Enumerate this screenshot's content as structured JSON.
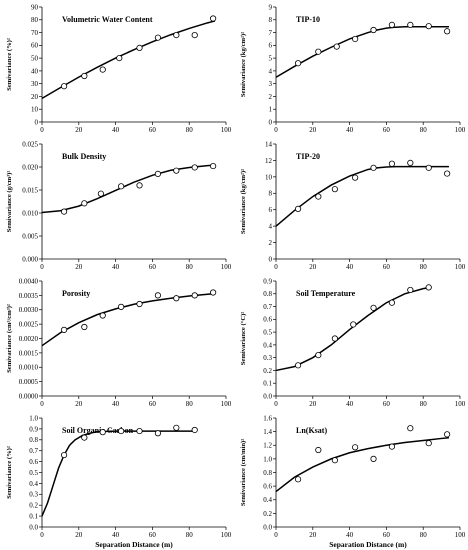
{
  "chart_data": [
    {
      "type": "scatter",
      "title": "Volumetric Water Content",
      "ylabel": "Semivariance (%)²",
      "xlabel": "",
      "xlim": [
        0,
        100
      ],
      "xticks": [
        0,
        20,
        40,
        60,
        80,
        100
      ],
      "ylim": [
        0,
        90
      ],
      "yticks": [
        0,
        10,
        20,
        30,
        40,
        50,
        60,
        70,
        80,
        90
      ],
      "ydecimals": 0,
      "grid": false,
      "legend": "none",
      "series": [
        {
          "kind": "points",
          "x": [
            12,
            23,
            33,
            42,
            53,
            63,
            73,
            83,
            93
          ],
          "y": [
            28,
            36,
            41,
            50,
            58,
            66,
            68,
            68,
            81
          ]
        },
        {
          "kind": "fit",
          "x": [
            0,
            10,
            20,
            30,
            40,
            50,
            60,
            70,
            80,
            90,
            94
          ],
          "y": [
            18.5,
            26.9,
            35.1,
            42.8,
            50,
            56.6,
            62.8,
            68.3,
            73.2,
            77.6,
            79.1
          ]
        }
      ]
    },
    {
      "type": "scatter",
      "title": "TIP-10",
      "ylabel": "Semivariance (kg/cm²)²",
      "xlabel": "",
      "xlim": [
        0,
        100
      ],
      "xticks": [
        0,
        20,
        40,
        60,
        80,
        100
      ],
      "ylim": [
        0,
        9
      ],
      "yticks": [
        0,
        1,
        2,
        3,
        4,
        5,
        6,
        7,
        8,
        9
      ],
      "ydecimals": 0,
      "grid": false,
      "legend": "none",
      "series": [
        {
          "kind": "points",
          "x": [
            12,
            23,
            33,
            43,
            53,
            63,
            73,
            83,
            93
          ],
          "y": [
            4.6,
            5.5,
            5.9,
            6.5,
            7.2,
            7.6,
            7.6,
            7.5,
            7.1
          ]
        },
        {
          "kind": "fit",
          "x": [
            0,
            10,
            20,
            30,
            40,
            50,
            55,
            60,
            65,
            70,
            80,
            94
          ],
          "y": [
            3.5,
            4.35,
            5.15,
            5.85,
            6.5,
            7.0,
            7.2,
            7.35,
            7.42,
            7.45,
            7.45,
            7.45
          ]
        }
      ]
    },
    {
      "type": "scatter",
      "title": "Bulk Density",
      "ylabel": "Semivariance (g/cm³)²",
      "xlabel": "",
      "xlim": [
        0,
        100
      ],
      "xticks": [
        0,
        20,
        40,
        60,
        80,
        100
      ],
      "ylim": [
        0,
        0.025
      ],
      "yticks": [
        0,
        0.005,
        0.01,
        0.015,
        0.02,
        0.025
      ],
      "ydecimals": 3,
      "grid": false,
      "legend": "none",
      "series": [
        {
          "kind": "points",
          "x": [
            12,
            23,
            32,
            43,
            53,
            63,
            73,
            83,
            93
          ],
          "y": [
            0.0103,
            0.0121,
            0.0142,
            0.0158,
            0.016,
            0.0185,
            0.0192,
            0.0199,
            0.0202
          ]
        },
        {
          "kind": "fit",
          "x": [
            0,
            10,
            20,
            30,
            40,
            50,
            60,
            70,
            80,
            90,
            94
          ],
          "y": [
            0.0101,
            0.0105,
            0.0115,
            0.0131,
            0.0149,
            0.0167,
            0.0182,
            0.0193,
            0.0199,
            0.0203,
            0.0204
          ]
        }
      ]
    },
    {
      "type": "scatter",
      "title": "TIP-20",
      "ylabel": "Semivariance (kg/cm²)²",
      "xlabel": "",
      "xlim": [
        0,
        100
      ],
      "xticks": [
        0,
        20,
        40,
        60,
        80,
        100
      ],
      "ylim": [
        0,
        14
      ],
      "yticks": [
        0,
        2,
        4,
        6,
        8,
        10,
        12,
        14
      ],
      "ydecimals": 0,
      "grid": false,
      "legend": "none",
      "series": [
        {
          "kind": "points",
          "x": [
            12,
            23,
            32,
            43,
            53,
            63,
            73,
            83,
            93
          ],
          "y": [
            6.1,
            7.6,
            8.5,
            9.9,
            11.1,
            11.6,
            11.7,
            11.1,
            10.4
          ]
        },
        {
          "kind": "fit",
          "x": [
            0,
            10,
            20,
            30,
            40,
            50,
            55,
            60,
            65,
            70,
            80,
            94
          ],
          "y": [
            4.0,
            5.9,
            7.6,
            9.0,
            10.1,
            10.9,
            11.1,
            11.2,
            11.25,
            11.25,
            11.25,
            11.25
          ]
        }
      ]
    },
    {
      "type": "scatter",
      "title": "Porosity",
      "ylabel": "Semivariance (cm³/cm³)²",
      "xlabel": "",
      "xlim": [
        0,
        100
      ],
      "xticks": [
        0,
        20,
        40,
        60,
        80,
        100
      ],
      "ylim": [
        0,
        0.004
      ],
      "yticks": [
        0,
        0.0005,
        0.001,
        0.0015,
        0.002,
        0.0025,
        0.003,
        0.0035,
        0.004
      ],
      "ydecimals": 4,
      "grid": false,
      "legend": "none",
      "series": [
        {
          "kind": "points",
          "x": [
            12,
            23,
            33,
            43,
            53,
            63,
            73,
            83,
            93
          ],
          "y": [
            0.0023,
            0.0024,
            0.0028,
            0.0031,
            0.0032,
            0.0035,
            0.0034,
            0.0035,
            0.0036
          ]
        },
        {
          "kind": "fit",
          "x": [
            0,
            10,
            20,
            30,
            40,
            50,
            60,
            70,
            80,
            90,
            94
          ],
          "y": [
            0.00175,
            0.0022,
            0.00255,
            0.00283,
            0.00303,
            0.00319,
            0.00331,
            0.0034,
            0.00348,
            0.00354,
            0.00356
          ]
        }
      ]
    },
    {
      "type": "scatter",
      "title": "Soil Temperature",
      "ylabel": "Semivariance (°C)²",
      "xlabel": "",
      "xlim": [
        0,
        100
      ],
      "xticks": [
        0,
        20,
        40,
        60,
        80,
        100
      ],
      "ylim": [
        0,
        0.9
      ],
      "yticks": [
        0,
        0.1,
        0.2,
        0.3,
        0.4,
        0.5,
        0.6,
        0.7,
        0.8,
        0.9
      ],
      "ydecimals": 1,
      "grid": false,
      "legend": "none",
      "series": [
        {
          "kind": "points",
          "x": [
            12,
            23,
            32,
            42,
            53,
            63,
            73,
            83
          ],
          "y": [
            0.24,
            0.32,
            0.45,
            0.56,
            0.69,
            0.73,
            0.83,
            0.85
          ]
        },
        {
          "kind": "fit",
          "x": [
            0,
            10,
            20,
            30,
            40,
            50,
            60,
            70,
            80,
            84
          ],
          "y": [
            0.2,
            0.23,
            0.3,
            0.4,
            0.52,
            0.63,
            0.73,
            0.8,
            0.84,
            0.85
          ]
        }
      ]
    },
    {
      "type": "scatter",
      "title": "Soil Organic Carbon",
      "ylabel": "Semivariance (%)²",
      "xlabel": "Separation Distance (m)",
      "xlim": [
        0,
        100
      ],
      "xticks": [
        0,
        20,
        40,
        60,
        80,
        100
      ],
      "ylim": [
        0,
        1.0
      ],
      "yticks": [
        0,
        0.1,
        0.2,
        0.3,
        0.4,
        0.5,
        0.6,
        0.7,
        0.8,
        0.9,
        1.0
      ],
      "ydecimals": 1,
      "grid": false,
      "legend": "none",
      "series": [
        {
          "kind": "points",
          "x": [
            12,
            23,
            33,
            43,
            53,
            63,
            73,
            83
          ],
          "y": [
            0.66,
            0.82,
            0.87,
            0.88,
            0.88,
            0.86,
            0.91,
            0.89
          ]
        },
        {
          "kind": "fit",
          "x": [
            0,
            3,
            6,
            9,
            12,
            15,
            18,
            22,
            26,
            30,
            40,
            50,
            84
          ],
          "y": [
            0.1,
            0.22,
            0.38,
            0.54,
            0.66,
            0.75,
            0.8,
            0.84,
            0.86,
            0.875,
            0.88,
            0.88,
            0.88
          ]
        }
      ]
    },
    {
      "type": "scatter",
      "title": "Ln(Ksat)",
      "ylabel": "Semivariance (cm/min)²",
      "xlabel": "Separation Distance (m)",
      "xlim": [
        0,
        100
      ],
      "xticks": [
        0,
        20,
        40,
        60,
        80,
        100
      ],
      "ylim": [
        0,
        1.6
      ],
      "yticks": [
        0,
        0.2,
        0.4,
        0.6,
        0.8,
        1.0,
        1.2,
        1.4,
        1.6
      ],
      "ydecimals": 1,
      "grid": false,
      "legend": "none",
      "series": [
        {
          "kind": "points",
          "x": [
            12,
            23,
            32,
            43,
            53,
            63,
            73,
            83,
            93
          ],
          "y": [
            0.7,
            1.13,
            0.98,
            1.17,
            1.0,
            1.18,
            1.45,
            1.23,
            1.36
          ]
        },
        {
          "kind": "fit",
          "x": [
            0,
            10,
            20,
            30,
            40,
            50,
            60,
            70,
            80,
            90,
            94
          ],
          "y": [
            0.52,
            0.73,
            0.88,
            1.0,
            1.09,
            1.15,
            1.2,
            1.24,
            1.27,
            1.3,
            1.31
          ]
        }
      ]
    }
  ]
}
